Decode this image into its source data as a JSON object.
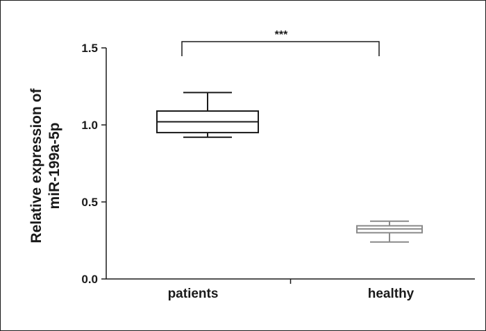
{
  "chart_data": {
    "type": "box",
    "categories": [
      "patients",
      "healthy"
    ],
    "boxes": [
      {
        "category": "patients",
        "min": 0.92,
        "q1": 0.95,
        "median": 1.02,
        "q3": 1.09,
        "max": 1.21,
        "color": "#1a1a1a"
      },
      {
        "category": "healthy",
        "min": 0.24,
        "q1": 0.3,
        "median": 0.325,
        "q3": 0.345,
        "max": 0.375,
        "color": "#8a8a8a"
      }
    ],
    "ylabel_lines": [
      "Relative expression of",
      "miR-199a-5p"
    ],
    "ylim": [
      0,
      1.5
    ],
    "yticks": [
      "0.0",
      "0.5",
      "1.0",
      "1.5"
    ],
    "ytick_values": [
      0,
      0.5,
      1.0,
      1.5
    ],
    "significance": {
      "label": "***",
      "between": [
        "patients",
        "healthy"
      ]
    },
    "grid": false
  }
}
